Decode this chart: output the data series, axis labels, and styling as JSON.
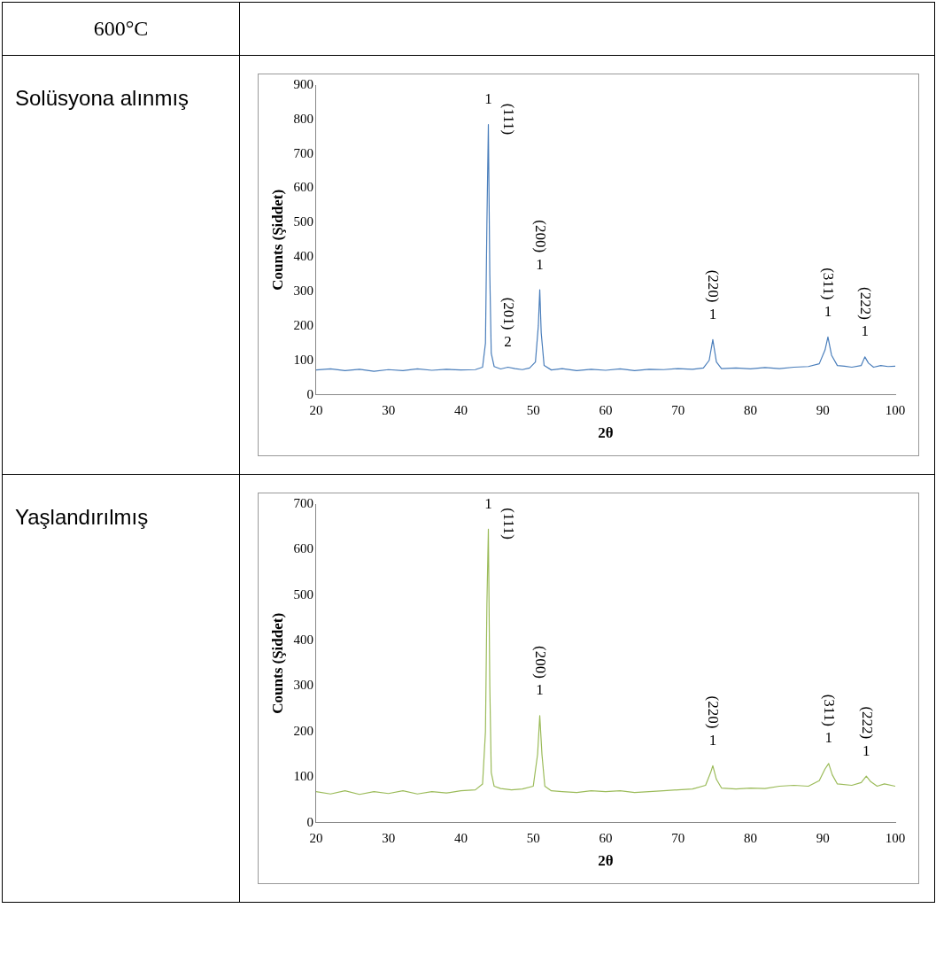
{
  "chart_data": [
    {
      "type": "line",
      "title": "Solüsyona alınmış",
      "xlabel": "2θ",
      "ylabel": "Counts (Şiddet)",
      "x": [
        20,
        22,
        24,
        26,
        28,
        30,
        32,
        34,
        36,
        38,
        40,
        42,
        43,
        43.4,
        43.6,
        43.8,
        44.0,
        44.2,
        44.6,
        45.5,
        46.5,
        47.5,
        48.5,
        49.5,
        50.3,
        50.7,
        50.9,
        51.1,
        51.5,
        52.5,
        54,
        56,
        58,
        60,
        62,
        64,
        66,
        68,
        70,
        72,
        73.5,
        74.3,
        74.8,
        75.3,
        76,
        78,
        80,
        82,
        84,
        86,
        88,
        89.5,
        90.3,
        90.7,
        91.2,
        92,
        93,
        94,
        95.3,
        95.8,
        96.3,
        97,
        98,
        99,
        100
      ],
      "series": [
        {
          "color": "#4a7ebb",
          "values": [
            72,
            75,
            70,
            74,
            68,
            73,
            70,
            75,
            71,
            74,
            72,
            73,
            80,
            150,
            500,
            785,
            350,
            120,
            82,
            75,
            80,
            76,
            73,
            78,
            95,
            200,
            305,
            180,
            85,
            72,
            76,
            70,
            74,
            71,
            75,
            70,
            74,
            73,
            76,
            74,
            78,
            100,
            160,
            95,
            76,
            78,
            75,
            79,
            76,
            80,
            82,
            90,
            130,
            168,
            115,
            85,
            83,
            80,
            85,
            110,
            92,
            80,
            85,
            82,
            83
          ]
        }
      ],
      "xlim": [
        20,
        100
      ],
      "xticks": [
        20,
        30,
        40,
        50,
        60,
        70,
        80,
        90,
        100
      ],
      "ylim": [
        0,
        900
      ],
      "yticks": [
        0,
        100,
        200,
        300,
        400,
        500,
        600,
        700,
        800,
        900
      ],
      "grid": false,
      "legend": false,
      "marker": "none",
      "line_style": "solid",
      "annotations": [
        "600°C",
        {
          "text": "1",
          "x": 43.8,
          "y": 785
        },
        {
          "text": "(111)",
          "x": 43.8,
          "y": 785
        },
        {
          "text": "2",
          "x": 46.5,
          "y": 80
        },
        {
          "text": "(201)",
          "x": 46.5,
          "y": 80
        },
        {
          "text": "1",
          "x": 50.9,
          "y": 305
        },
        {
          "text": "(200)",
          "x": 50.9,
          "y": 305
        },
        {
          "text": "1",
          "x": 74.8,
          "y": 160
        },
        {
          "text": "(220)",
          "x": 74.8,
          "y": 160
        },
        {
          "text": "1",
          "x": 90.7,
          "y": 168
        },
        {
          "text": "(311)",
          "x": 90.7,
          "y": 168
        },
        {
          "text": "1",
          "x": 95.8,
          "y": 110
        },
        {
          "text": "(222)",
          "x": 95.8,
          "y": 110
        }
      ]
    },
    {
      "type": "line",
      "xlabel": "2θ",
      "ylabel": "Counts (Şiddet)",
      "x": [
        20,
        22,
        24,
        26,
        28,
        30,
        32,
        34,
        36,
        38,
        40,
        42,
        43,
        43.4,
        43.6,
        43.8,
        44.0,
        44.2,
        44.6,
        45.5,
        47,
        48.5,
        50,
        50.6,
        50.9,
        51.2,
        51.6,
        52.5,
        54,
        56,
        58,
        60,
        62,
        64,
        66,
        68,
        70,
        72,
        73.8,
        74.5,
        74.8,
        75.3,
        76,
        78,
        80,
        82,
        84,
        86,
        88,
        89.5,
        90.3,
        90.8,
        91.3,
        92,
        94,
        95.3,
        96,
        96.6,
        97.5,
        98.5,
        100
      ],
      "series": [
        {
          "color": "#9bbb59",
          "values": [
            68,
            63,
            70,
            62,
            68,
            64,
            70,
            63,
            68,
            65,
            70,
            72,
            85,
            200,
            480,
            645,
            300,
            110,
            80,
            75,
            72,
            74,
            80,
            150,
            235,
            150,
            80,
            70,
            68,
            66,
            70,
            68,
            70,
            66,
            68,
            70,
            72,
            74,
            82,
            110,
            125,
            95,
            76,
            74,
            76,
            75,
            80,
            82,
            80,
            92,
            118,
            130,
            105,
            85,
            82,
            88,
            102,
            90,
            80,
            85,
            80
          ]
        }
      ],
      "xlim": [
        20,
        100
      ],
      "xticks": [
        20,
        30,
        40,
        50,
        60,
        70,
        80,
        90,
        100
      ],
      "ylim": [
        0,
        700
      ],
      "yticks": [
        0,
        100,
        200,
        300,
        400,
        500,
        600,
        700
      ],
      "grid": false,
      "legend": false,
      "marker": "none",
      "line_style": "solid",
      "annotations": [
        "Yaşlandırılmış",
        {
          "text": "1",
          "x": 43.8,
          "y": 645
        },
        {
          "text": "(111)",
          "x": 43.8,
          "y": 645
        },
        {
          "text": "1",
          "x": 50.9,
          "y": 235
        },
        {
          "text": "(200)",
          "x": 50.9,
          "y": 235
        },
        {
          "text": "1",
          "x": 74.8,
          "y": 125
        },
        {
          "text": "(220)",
          "x": 74.8,
          "y": 125
        },
        {
          "text": "1",
          "x": 90.8,
          "y": 130
        },
        {
          "text": "(311)",
          "x": 90.8,
          "y": 130
        },
        {
          "text": "1",
          "x": 96,
          "y": 102
        },
        {
          "text": "(222)",
          "x": 96,
          "y": 102
        }
      ]
    }
  ]
}
